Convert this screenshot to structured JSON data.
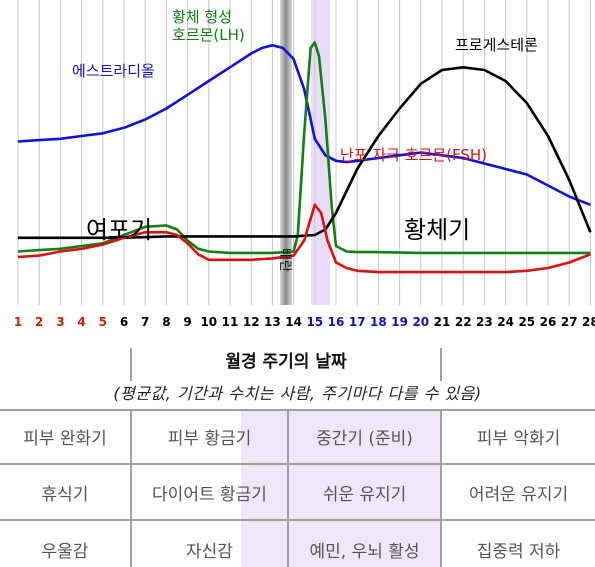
{
  "chart_data": {
    "type": "line",
    "days": [
      1,
      2,
      3,
      4,
      5,
      6,
      7,
      8,
      9,
      10,
      11,
      12,
      13,
      14,
      15,
      16,
      17,
      18,
      19,
      20,
      21,
      22,
      23,
      24,
      25,
      26,
      27,
      28
    ],
    "day_colors": {
      "menstruation": "#cc2200",
      "fertile": "#1010c0",
      "other": "#000000"
    },
    "series": [
      {
        "name": "에스트라디올",
        "color": "#1010dd",
        "x": [
          1,
          2,
          3,
          4,
          5,
          6,
          7,
          8,
          9,
          10,
          11,
          12,
          12.5,
          13,
          13.5,
          14,
          14.5,
          15,
          15.5,
          16,
          16.5,
          17,
          18,
          19,
          20,
          21,
          22,
          23,
          24,
          25,
          26,
          27,
          28
        ],
        "y": [
          54,
          54.5,
          55,
          56,
          57,
          59,
          62,
          66,
          71,
          76,
          81,
          86,
          88,
          89,
          88,
          84,
          73,
          55,
          49,
          47,
          46.5,
          47,
          48,
          49,
          50,
          49,
          48,
          46,
          44,
          42,
          38,
          34,
          31
        ]
      },
      {
        "name": "황체 형성 호르몬(LH)",
        "color": "#108010",
        "x": [
          1,
          2,
          3,
          4,
          5,
          6,
          7,
          8,
          8.5,
          9,
          9.5,
          10,
          11,
          12,
          13,
          14,
          14.2,
          14.5,
          14.8,
          15,
          15.2,
          15.5,
          15.8,
          16,
          16.5,
          17,
          18,
          20,
          22,
          24,
          26,
          28
        ],
        "y": [
          14,
          14.5,
          15,
          16,
          17,
          20,
          23,
          23.5,
          22,
          18,
          15,
          14,
          13.5,
          13.5,
          13.5,
          14,
          20,
          57,
          88,
          90,
          85,
          62,
          30,
          16,
          14,
          13.8,
          13.8,
          13.5,
          13.5,
          13.5,
          13.5,
          13.5
        ]
      },
      {
        "name": "프로게스테론",
        "color": "#000000",
        "x": [
          1,
          2,
          4,
          6,
          8,
          10,
          12,
          14,
          15,
          15.5,
          16,
          16.5,
          17,
          18,
          19,
          20,
          21,
          22,
          23,
          24,
          25,
          26,
          27,
          28
        ],
        "y": [
          19,
          19,
          19,
          19,
          19.5,
          19.5,
          19.5,
          19.5,
          20,
          22,
          28,
          36,
          44,
          56,
          66,
          75,
          80,
          81,
          80,
          76,
          68,
          56,
          40,
          21
        ]
      },
      {
        "name": "난포 자극 호르몬(FSH)",
        "color": "#dd1010",
        "x": [
          1,
          2,
          3,
          4,
          5,
          6,
          7,
          8,
          8.5,
          9,
          9.5,
          10,
          11,
          12,
          13,
          14,
          14.5,
          15,
          15.3,
          15.6,
          16,
          16.5,
          17,
          18,
          20,
          22,
          24,
          25,
          26,
          27,
          28
        ],
        "y": [
          12,
          12.5,
          14,
          15,
          16.5,
          19,
          21,
          21,
          20,
          17,
          13,
          11,
          11,
          11,
          11.5,
          12.5,
          18,
          31,
          28,
          18,
          10,
          8,
          7,
          6.5,
          6.5,
          6.5,
          6.5,
          7,
          8,
          10,
          13
        ]
      }
    ],
    "ovulation_label": "배란",
    "phase_labels": [
      "여포기",
      "황체기"
    ]
  },
  "table": {
    "title": "월경 주기의 날짜",
    "subtitle": "(평균값, 기간과 수치는 사람, 주기마다 다를 수 있음)",
    "rows": [
      [
        "피부 완화기",
        "피부 황금기",
        "중간기 (준비)",
        "피부 악화기"
      ],
      [
        "휴식기",
        "다이어트 황금기",
        "쉬운 유지기",
        "어려운 유지기"
      ],
      [
        "우울감",
        "자신감",
        "예민, 우뇌 활성",
        "집중력 저하"
      ]
    ]
  },
  "colors": {
    "grid_line": "#c8c8c8",
    "highlight": "#e8dcf8",
    "ovulation_band": "#9a9a9a",
    "table_text": "#555555",
    "table_lines": "#a0a0a0"
  }
}
